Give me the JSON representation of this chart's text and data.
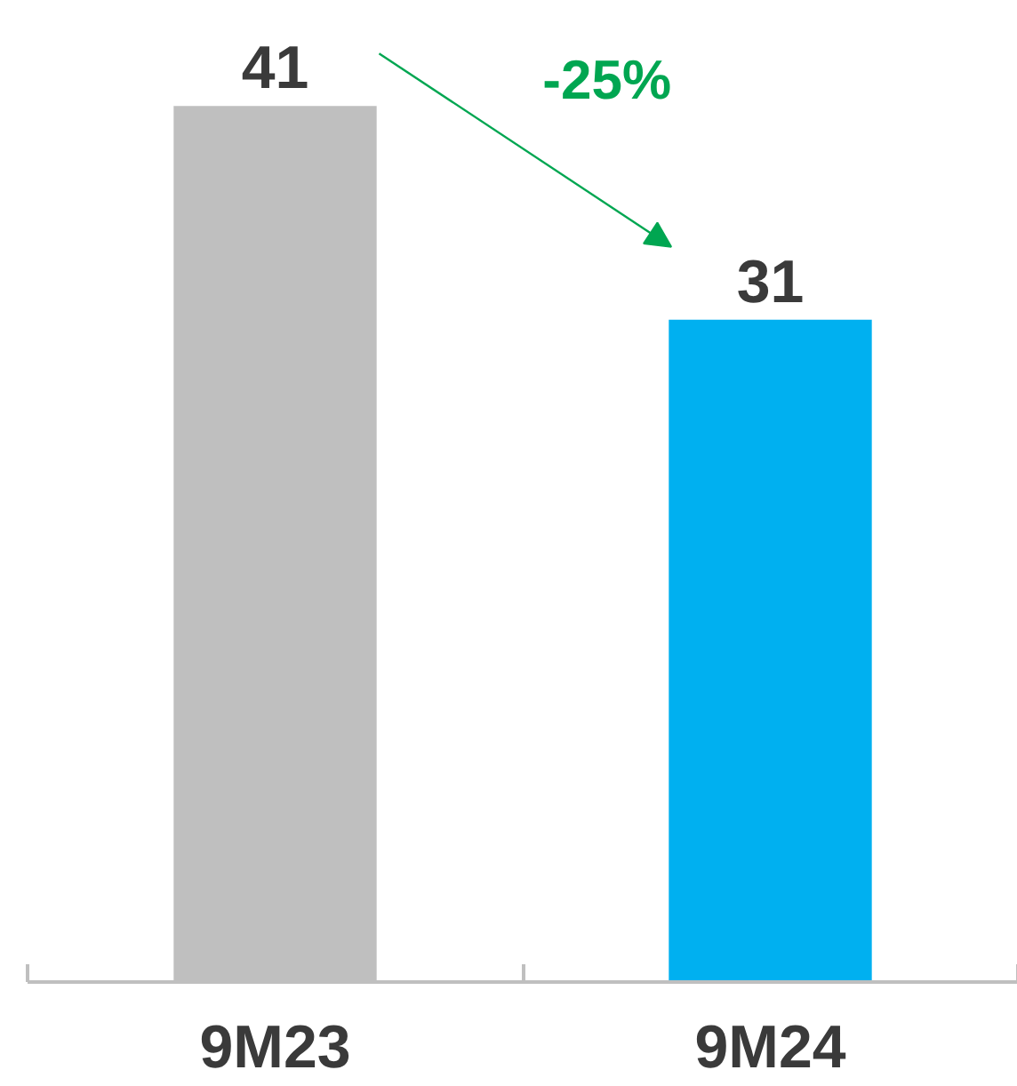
{
  "chart_data": {
    "type": "bar",
    "categories": [
      "9M23",
      "9M24"
    ],
    "values": [
      41,
      31
    ],
    "colors": [
      "#bfbfbf",
      "#00b0f0"
    ],
    "data_labels": true,
    "annotations": [
      "-25%"
    ]
  }
}
